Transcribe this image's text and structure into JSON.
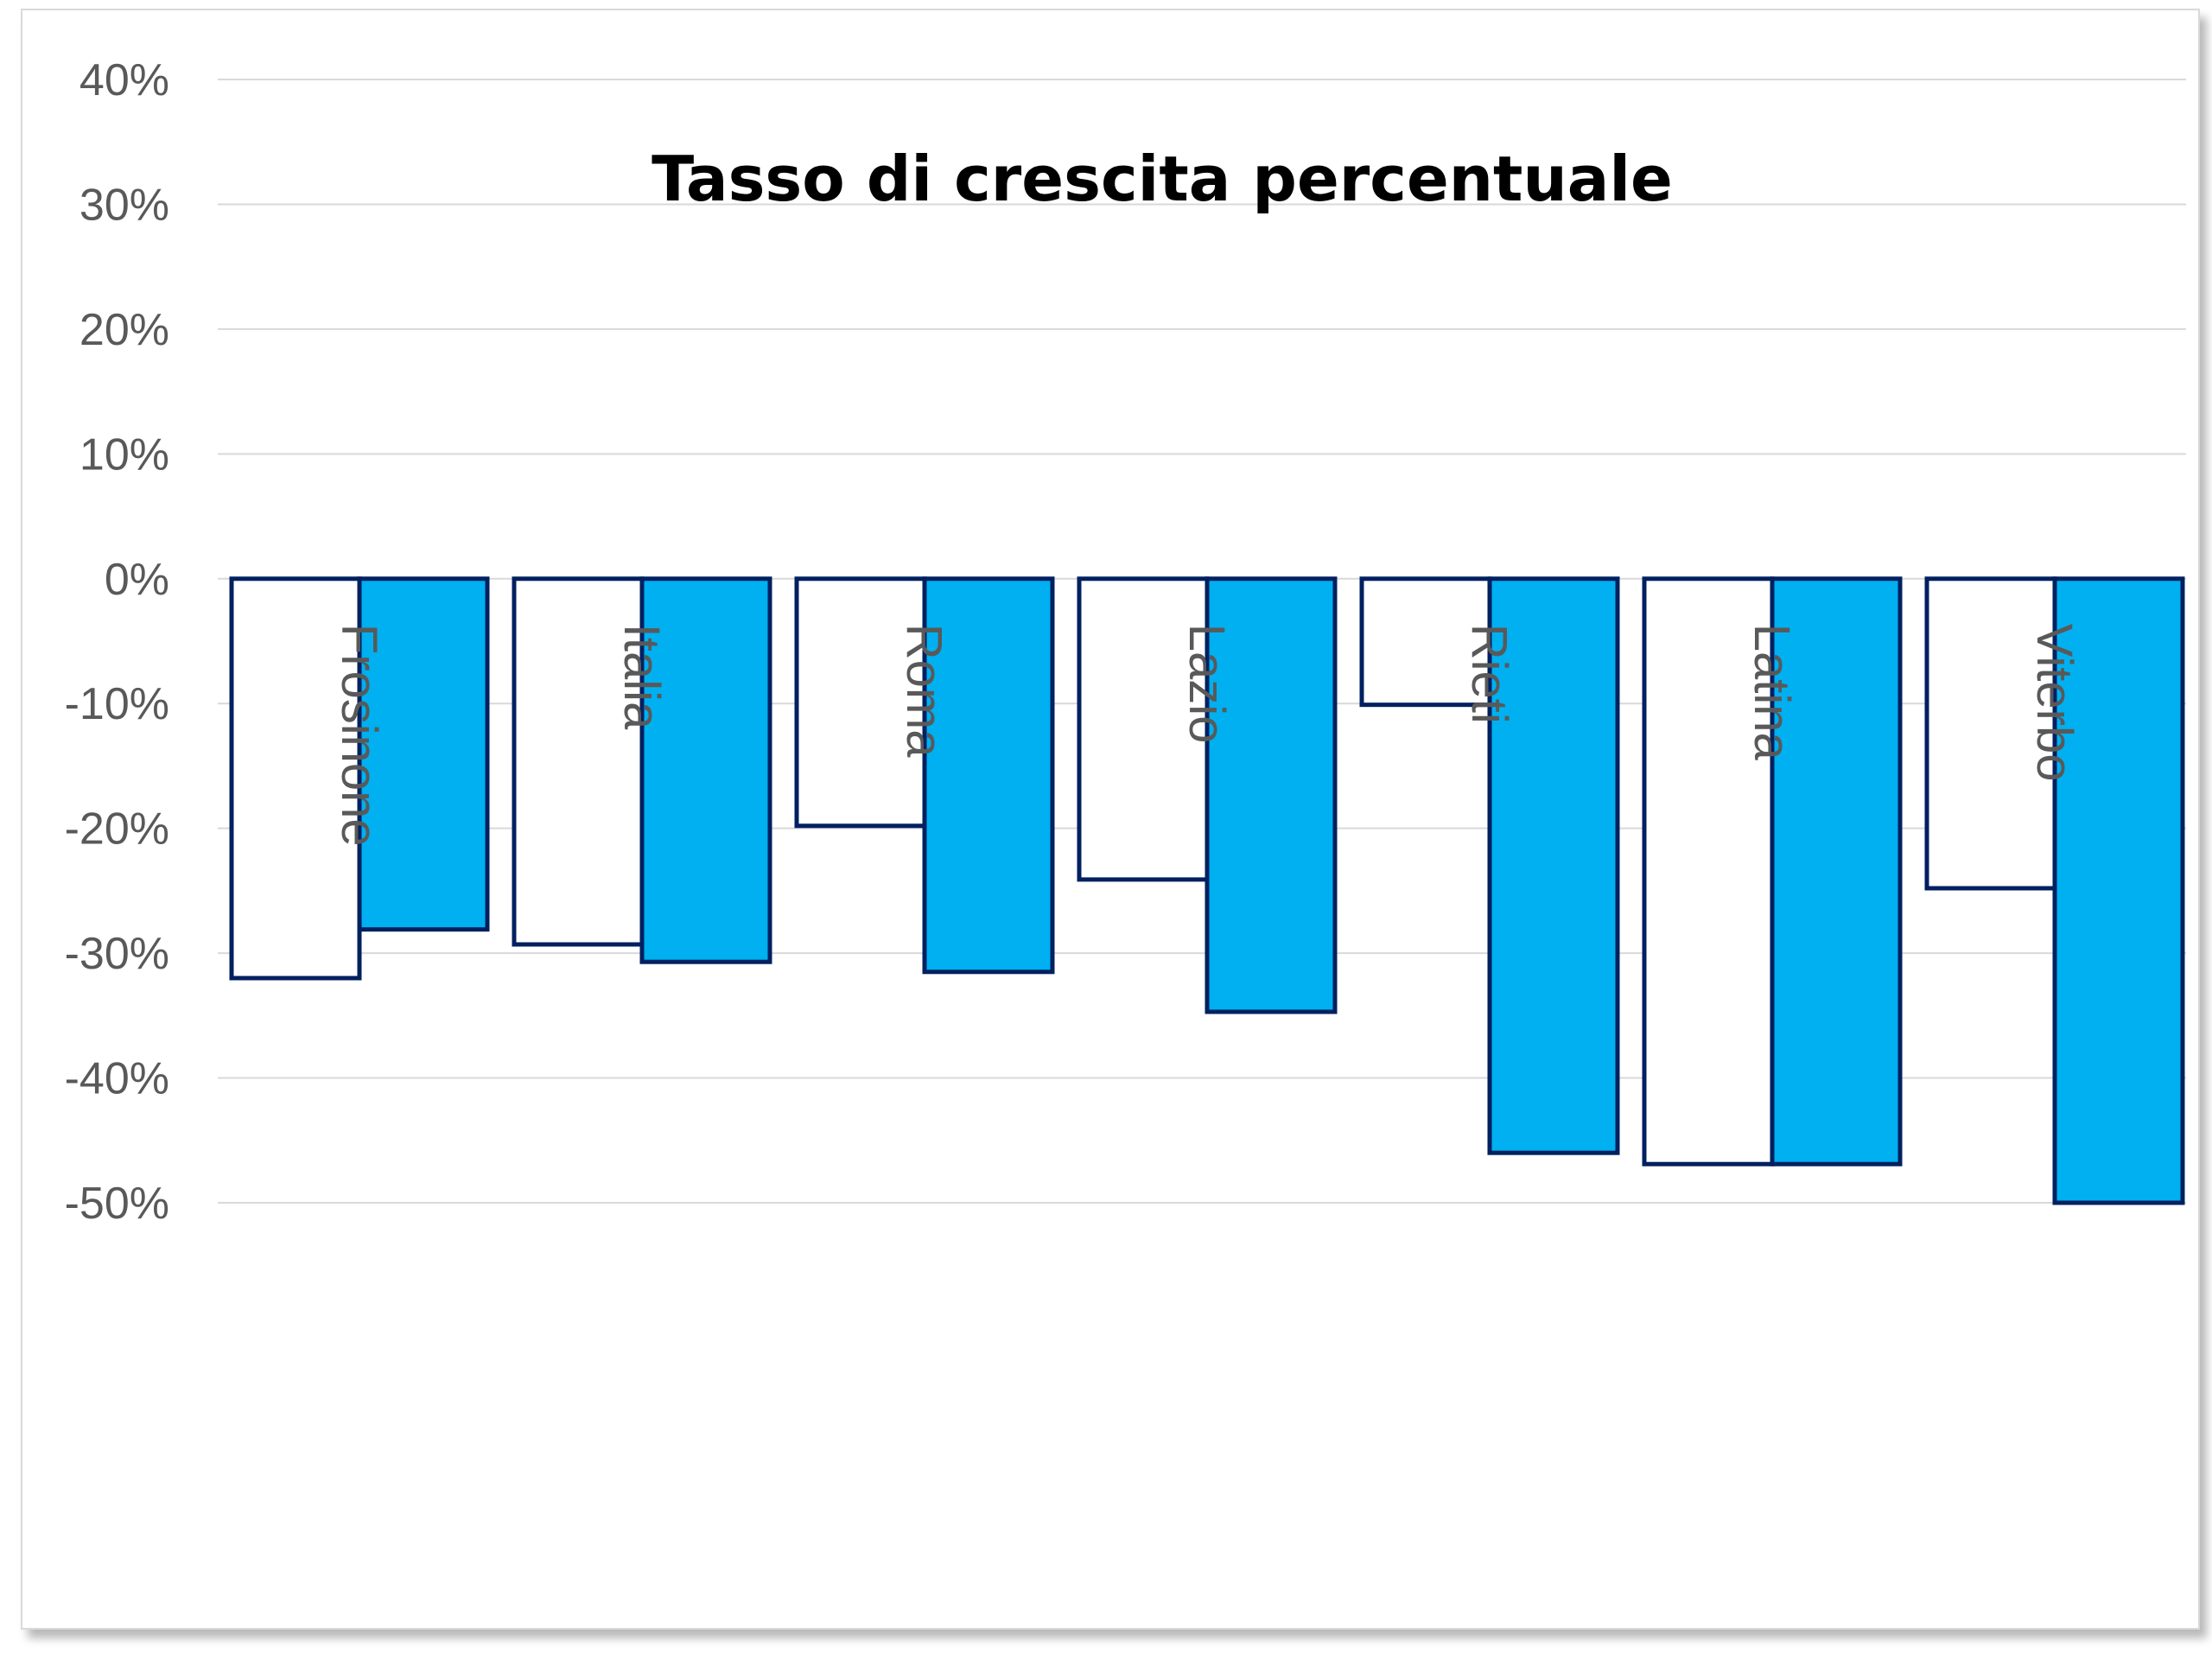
{
  "chart_data": {
    "type": "bar",
    "title": "Tasso di crescita percentuale",
    "xlabel": "",
    "ylabel": "",
    "categories": [
      "Frosinone",
      "Italia",
      "Roma",
      "Lazio",
      "Rieti",
      "Latina",
      "Viterbo"
    ],
    "series": [
      {
        "values": [
          -32,
          -29.3,
          -19.8,
          -24.1,
          -10.1,
          -46.9,
          -24.8
        ],
        "color": "#ffffff"
      },
      {
        "values": [
          -28.1,
          -30.7,
          -31.5,
          -34.7,
          -46,
          -46.9,
          -50
        ],
        "color": "#00b0f0"
      }
    ],
    "ylim": [
      -50,
      40
    ],
    "yticks": [
      40,
      30,
      20,
      10,
      0,
      -10,
      -20,
      -30,
      -40,
      -50
    ],
    "ytick_labels": [
      "40%",
      "30%",
      "20%",
      "10%",
      "0%",
      "-10%",
      "-20%",
      "-30%",
      "-40%",
      "-50%"
    ],
    "grid": true,
    "legend": "none",
    "bar_outline_color": "#002060",
    "gridline_color": "#d9d9d9"
  }
}
